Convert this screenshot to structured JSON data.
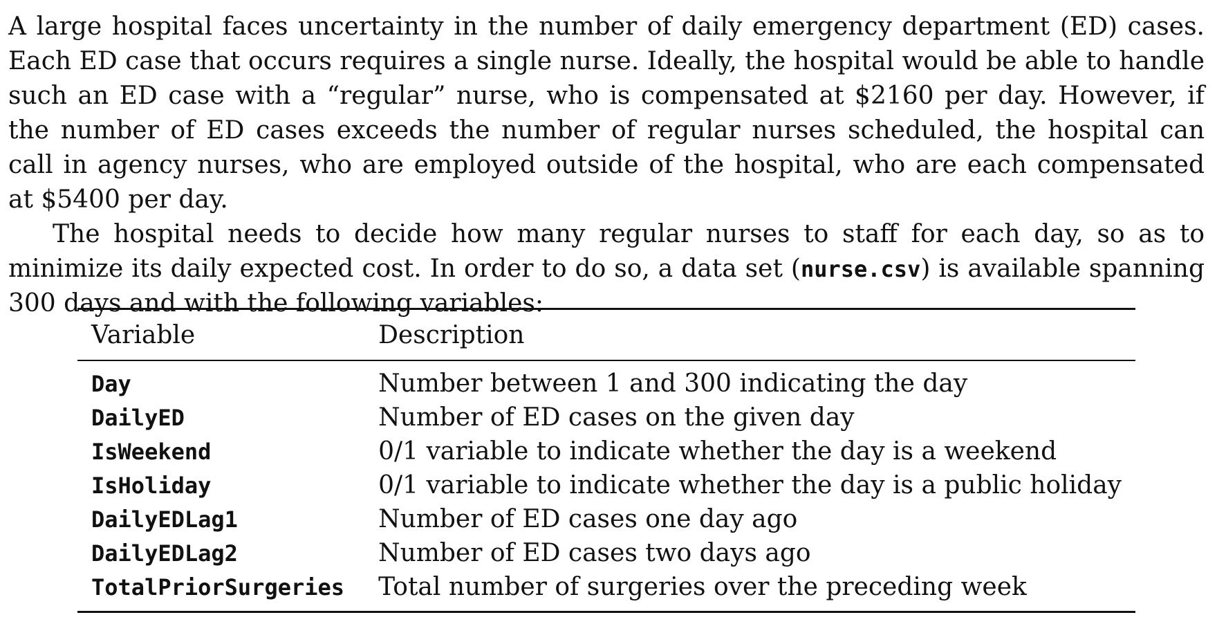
{
  "paragraph1": "A large hospital faces uncertainty in the number of daily emergency department (ED) cases. Each ED case that occurs requires a single nurse. Ideally, the hospital would be able to handle such an ED case with a “regular” nurse, who is compensated at $2160 per day. However, if the number of ED cases exceeds the number of regular nurses scheduled, the hospital can call in agency nurses, who are employed outside of the hospital, who are each compensated at $5400 per day.",
  "paragraph2": {
    "before_code": "The hospital needs to decide how many regular nurses to staff for each day, so as to minimize its daily expected cost. In order to do so, a data set (",
    "code": "nurse.csv",
    "after_code": ") is available spanning 300 days and with the following variables:"
  },
  "table": {
    "headers": [
      "Variable",
      "Description"
    ],
    "rows": [
      {
        "variable": "Day",
        "description": "Number between 1 and 300 indicating the day"
      },
      {
        "variable": "DailyED",
        "description": "Number of ED cases on the given day"
      },
      {
        "variable": "IsWeekend",
        "description": "0/1 variable to indicate whether the day is a weekend"
      },
      {
        "variable": "IsHoliday",
        "description": "0/1 variable to indicate whether the day is a public holiday"
      },
      {
        "variable": "DailyEDLag1",
        "description": "Number of ED cases one day ago"
      },
      {
        "variable": "DailyEDLag2",
        "description": "Number of ED cases two days ago"
      },
      {
        "variable": "TotalPriorSurgeries",
        "description": "Total number of surgeries over the preceding week"
      }
    ]
  }
}
